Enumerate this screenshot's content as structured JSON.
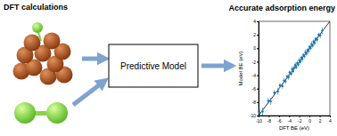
{
  "labels": {
    "left": "DFT calculations",
    "center": "Predictive Model"
  },
  "chart_data": {
    "type": "scatter",
    "title": "Accurate adsorption energy",
    "x_label": "DFT BE (eV)",
    "y_label": "Model BE (eV)",
    "xlim": [
      -10,
      4
    ],
    "ylim": [
      -10,
      4
    ],
    "xticks": [
      -10,
      -8,
      -6,
      -4,
      -2,
      0,
      2,
      4
    ],
    "yticks": [
      -10,
      -8,
      -6,
      -4,
      -2,
      0,
      2,
      4
    ],
    "color": "#1f77b4",
    "marker": "circle",
    "x": [
      -9.8,
      -9.2,
      -8.1,
      -7.6,
      -6.9,
      -6.2,
      -5.8,
      -5.3,
      -5.0,
      -4.7,
      -4.4,
      -4.1,
      -3.9,
      -3.6,
      -3.4,
      -3.2,
      -3.0,
      -2.8,
      -2.6,
      -2.4,
      -2.2,
      -2.0,
      -1.8,
      -1.6,
      -1.4,
      -1.2,
      -1.0,
      -0.8,
      -0.6,
      -0.4,
      -0.2,
      0.0,
      0.2,
      0.4,
      0.6,
      0.8,
      1.0,
      1.2,
      1.5,
      1.8,
      2.1,
      2.5
    ],
    "values": [
      -9.6,
      -9.4,
      -7.8,
      -7.9,
      -6.6,
      -6.4,
      -5.5,
      -5.6,
      -4.8,
      -4.9,
      -4.2,
      -4.3,
      -3.6,
      -3.8,
      -3.1,
      -3.4,
      -2.9,
      -2.5,
      -2.8,
      -2.2,
      -2.4,
      -1.8,
      -2.0,
      -1.4,
      -1.6,
      -1.0,
      -1.2,
      -0.6,
      -0.8,
      -0.3,
      -0.4,
      0.2,
      0.0,
      0.6,
      0.4,
      1.0,
      0.8,
      1.4,
      1.3,
      2.0,
      1.9,
      2.6
    ],
    "errors": [
      0.5,
      0.6,
      0.4,
      0.5,
      0.4,
      0.5,
      0.3,
      0.4,
      0.3,
      0.4,
      0.3,
      0.4,
      0.3,
      0.3,
      0.4,
      0.3,
      0.3,
      0.4,
      0.3,
      0.3,
      0.3,
      0.4,
      0.3,
      0.3,
      0.4,
      0.3,
      0.3,
      0.4,
      0.3,
      0.3,
      0.4,
      0.3,
      0.3,
      0.4,
      0.3,
      0.3,
      0.4,
      0.3,
      0.4,
      0.3,
      0.4,
      0.5
    ]
  }
}
